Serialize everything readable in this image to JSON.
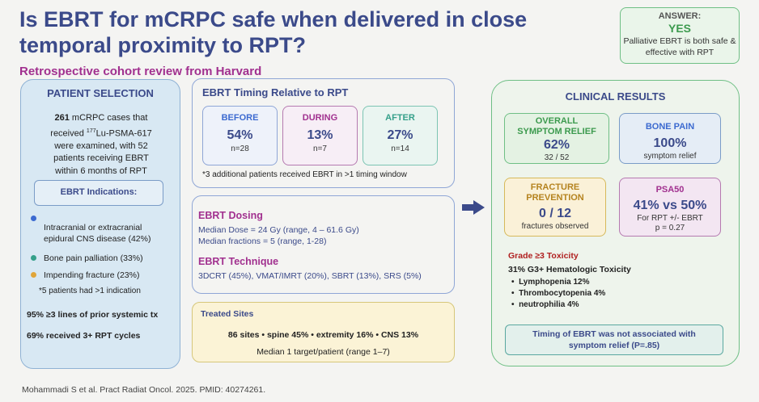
{
  "title": "Is EBRT for mCRPC safe when delivered in close temporal proximity to RPT?",
  "subtitle": "Retrospective cohort review from Harvard",
  "answer": {
    "label": "ANSWER:",
    "value": "YES",
    "text": "Palliative EBRT is both safe & effective with RPT"
  },
  "patient_selection": {
    "title": "PATIENT SELECTION",
    "count": "261",
    "line1": " mCRPC cases that",
    "line2_prefix": "received ",
    "isotope_mass": "177",
    "line2_suffix": "Lu-PSMA-617",
    "line3": "were examined, with 52",
    "line4": "patients receiving EBRT",
    "line5": "within 6 months of RPT",
    "indications_title": "EBRT Indications:",
    "indications": [
      {
        "text1": "Intracranial or extracranial",
        "text2": "epidural CNS disease (42%)",
        "color": "#3c6ad0"
      },
      {
        "text1": "Bone pain palliation (33%)",
        "color": "#35a08a"
      },
      {
        "text1": "Impending fracture (23%)",
        "color": "#e0a53a"
      }
    ],
    "indications_note": "*5 patients had >1 indication",
    "fact1": "95% ≥3 lines of prior systemic tx",
    "fact2": "69% received 3+ RPT cycles"
  },
  "timing": {
    "title": "EBRT Timing Relative to RPT",
    "boxes": [
      {
        "label": "BEFORE",
        "pct": "54%",
        "n": "n=28"
      },
      {
        "label": "DURING",
        "pct": "13%",
        "n": "n=7"
      },
      {
        "label": "AFTER",
        "pct": "27%",
        "n": "n=14"
      }
    ],
    "note": "*3 additional patients received EBRT in >1 timing window"
  },
  "dosing": {
    "title": "EBRT Dosing",
    "line1": "Median Dose = 24 Gy (range, 4 – 61.6 Gy)",
    "line2": "Median fractions = 5 (range, 1-28)",
    "technique_title": "EBRT Technique",
    "technique": "3DCRT (45%), VMAT/IMRT (20%), SBRT (13%), SRS (5%)"
  },
  "sites": {
    "title": "Treated Sites",
    "line1": "86 sites  •  spine 45%  •  extremity 16%  •  CNS 13%",
    "line2": "Median 1 target/patient (range 1–7)"
  },
  "clinical": {
    "title": "CLINICAL RESULTS",
    "overall": {
      "h1": "OVERALL",
      "h2": "SYMPTOM RELIEF",
      "value": "62%",
      "sub": "32 / 52"
    },
    "bone": {
      "h1": "BONE PAIN",
      "value": "100%",
      "sub": "symptom relief"
    },
    "fracture": {
      "h1": "FRACTURE",
      "h2": "PREVENTION",
      "value": "0 / 12",
      "sub": "fractures observed"
    },
    "psa": {
      "h1": "PSA50",
      "value": "41% vs 50%",
      "sub1": "For RPT +/- EBRT",
      "sub2": "p = 0.27"
    },
    "toxicity_title": "Grade ≥3 Toxicity",
    "toxicity_main": "31% G3+ Hematologic Toxicity",
    "toxicity_items": [
      "Lymphopenia 12%",
      "Thrombocytopenia 4%",
      "neutrophilia 4%"
    ],
    "timing_line1": "Timing of EBRT was not associated with",
    "timing_line2": "symptom relief (P=.85)"
  },
  "citation": "Mohammadi S et al. Pract Radiat Oncol. 2025. PMID: 40274261."
}
